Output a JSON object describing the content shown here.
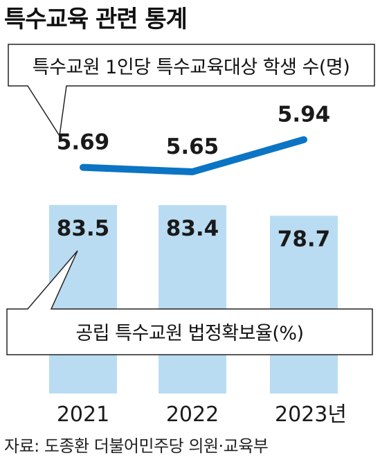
{
  "title": "특수교육 관련 통계",
  "source": "자료: 도종환 더불어민주당 의원·교육부",
  "year_suffix": "년",
  "colors": {
    "line": "#0b74c4",
    "bar": "#b9dcf2",
    "text": "#1a1a1a",
    "callout_border": "#222222"
  },
  "chart_data": [
    {
      "type": "line",
      "title": "특수교원 1인당 특수교육대상 학생 수(명)",
      "x": [
        "2021",
        "2022",
        "2023"
      ],
      "values": [
        5.69,
        5.65,
        5.94
      ],
      "data_labels": [
        "5.69",
        "5.65",
        "5.94"
      ]
    },
    {
      "type": "bar",
      "title": "공립 특수교원 법정확보율(%)",
      "categories": [
        "2021",
        "2022",
        "2023"
      ],
      "values": [
        83.5,
        83.4,
        78.7
      ],
      "data_labels": [
        "83.5",
        "83.4",
        "78.7"
      ]
    }
  ]
}
